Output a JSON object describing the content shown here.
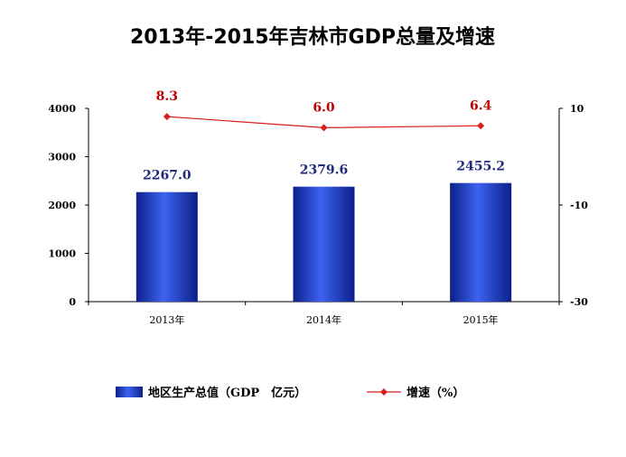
{
  "chart_data": {
    "type": "bar",
    "title": "2013年-2015年吉林市GDP总量及增速",
    "categories": [
      "2013年",
      "2014年",
      "2015年"
    ],
    "series": [
      {
        "name": "地区生产总值（GDP　亿元）",
        "chart": "bar",
        "axis": "left",
        "values": [
          2267.0,
          2379.6,
          2455.2
        ],
        "labels": [
          "2267.0",
          "2379.6",
          "2455.2"
        ],
        "color": "#2541c9"
      },
      {
        "name": "增速（%）",
        "chart": "line",
        "axis": "right",
        "values": [
          8.3,
          6.0,
          6.4
        ],
        "labels": [
          "8.3",
          "6.0",
          "6.4"
        ],
        "color": "#d81e1e"
      }
    ],
    "y_left": {
      "ylim": [
        0,
        4000
      ],
      "ticks": [
        "0",
        "1000",
        "2000",
        "3000",
        "4000"
      ]
    },
    "y_right": {
      "ylim": [
        -30,
        10
      ],
      "ticks": [
        "-30",
        "-10",
        "10"
      ]
    },
    "legend_position": "bottom",
    "grid": false
  }
}
